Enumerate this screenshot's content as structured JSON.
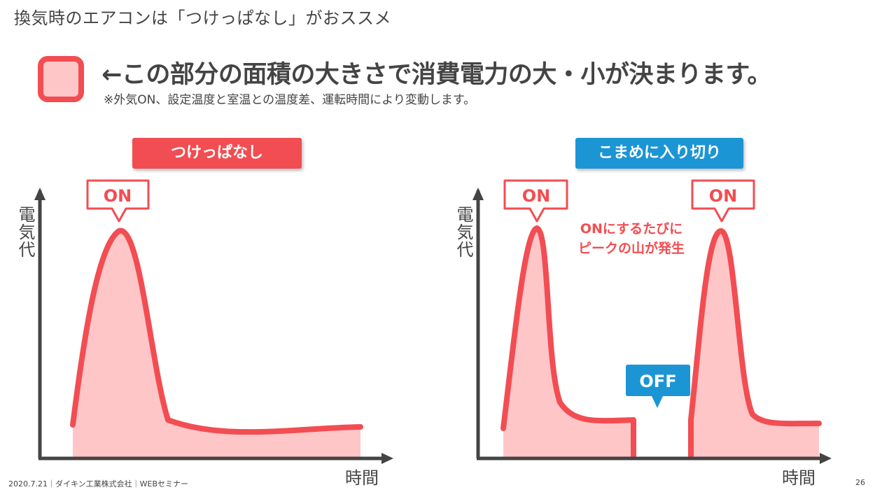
{
  "slide": {
    "title": "換気時のエアコンは「つけっぱなし」がおススメ",
    "headline": "←この部分の面積の大きさで消費電力の大・小が決まります。",
    "note": "※外気ON、設定温度と室温との温度差、運転時間により変動します。",
    "footer": "2020.7.21｜ダイキン工業株式会社｜WEBセミナー",
    "page_number": "26"
  },
  "colors": {
    "line": "#f24d52",
    "fill": "#ffc6c8",
    "blue": "#1c95d5",
    "axis": "#444444"
  },
  "left_chart": {
    "label": "つけっぱなし",
    "on_label": "ON",
    "ylabel": "電気代",
    "xlabel": "時間"
  },
  "right_chart": {
    "label": "こまめに入り切り",
    "on_label_1": "ON",
    "on_label_2": "ON",
    "off_label": "OFF",
    "peak_note_line1": "ONにするたびに",
    "peak_note_line2": "ピークの山が発生",
    "ylabel": "電気代",
    "xlabel": "時間"
  }
}
